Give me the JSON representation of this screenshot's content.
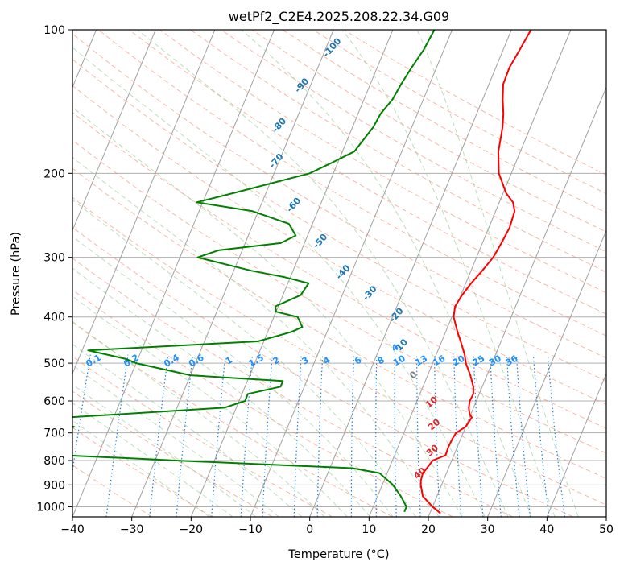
{
  "chart_data": {
    "type": "line",
    "title": "wetPf2_C2E4.2025.208.22.34.G09",
    "xlabel": "Temperature (°C)",
    "ylabel": "Pressure (hPa)",
    "xlim": [
      -40,
      50
    ],
    "ylim": [
      1050,
      100
    ],
    "yscale": "log",
    "x_ticks": [
      "−40",
      "−30",
      "−20",
      "−10",
      "0",
      "10",
      "20",
      "30",
      "40",
      "50"
    ],
    "y_ticks": [
      "100",
      "200",
      "300",
      "400",
      "500",
      "600",
      "700",
      "800",
      "900",
      "1000"
    ],
    "grid": true,
    "legend": "none",
    "series": [
      {
        "color": "#ff0000",
        "pressure": [
          1032,
          1000,
          950,
          900,
          880,
          850,
          840,
          800,
          780,
          750,
          720,
          700,
          680,
          650,
          640,
          620,
          600,
          580,
          560,
          530,
          500,
          480,
          450,
          430,
          400,
          380,
          360,
          340,
          320,
          300,
          280,
          260,
          240,
          230,
          220,
          200,
          180,
          160,
          150,
          140,
          130,
          120,
          110,
          100
        ],
        "temperature": [
          21.8,
          20.0,
          17.6,
          16.5,
          16.2,
          16.0,
          16.2,
          16.8,
          18.6,
          18.5,
          18.6,
          18.8,
          20.0,
          20.4,
          19.8,
          19.2,
          18.9,
          19.0,
          18.5,
          17.2,
          15.6,
          14.8,
          13.2,
          12.0,
          10.3,
          9.8,
          10.2,
          10.9,
          11.9,
          12.8,
          13.2,
          13.5,
          13.2,
          12.3,
          10.5,
          7.9,
          6.3,
          5.3,
          4.5,
          3.4,
          2.4,
          2.3,
          2.8,
          3.3
        ]
      },
      {
        "color": "#008000",
        "pressure": [
          1025,
          1000,
          950,
          900,
          850,
          830,
          800,
          790,
          780,
          760,
          745,
          730,
          720,
          700,
          680,
          660,
          650,
          620,
          600,
          580,
          560,
          545,
          530,
          500,
          490,
          470,
          450,
          430,
          420,
          400,
          390,
          380,
          360,
          340,
          330,
          320,
          300,
          290,
          280,
          270,
          255,
          240,
          230,
          220,
          200,
          190,
          180,
          160,
          150,
          140,
          130,
          120,
          110,
          100
        ],
        "temperature": [
          15.6,
          15.6,
          13.9,
          11.8,
          8.7,
          3.8,
          -26.5,
          -35.7,
          -46.0,
          -54.0,
          -58.0,
          -54.0,
          -56.0,
          -52.5,
          -46.0,
          -51.0,
          -48.0,
          -22.0,
          -19.0,
          -19.0,
          -14.0,
          -14.0,
          -30.0,
          -40.0,
          -42.0,
          -49.0,
          -21.0,
          -16.0,
          -14.5,
          -16.0,
          -20.0,
          -20.5,
          -17.0,
          -16.5,
          -21.0,
          -27.0,
          -37.0,
          -34.0,
          -24.0,
          -22.0,
          -24.0,
          -31.0,
          -41.0,
          -35.5,
          -24.0,
          -21.0,
          -18.0,
          -16.5,
          -16.2,
          -15.2,
          -14.8,
          -14.2,
          -13.4,
          -13.0
        ]
      }
    ],
    "mixing_ratio_labels": [
      "0.1",
      "0.2",
      "0.4",
      "0.6",
      "1",
      "1.5",
      "2",
      "3",
      "4",
      "6",
      "8",
      "10",
      "13",
      "16",
      "20",
      "25",
      "30",
      "36",
      "4",
      "10"
    ],
    "dry_adiabat_labels": [
      "-100",
      "-90",
      "-80",
      "-70",
      "-60",
      "-50",
      "-40",
      "-30",
      "-20"
    ],
    "moist_adiabat_labels": [
      "0",
      "10",
      "20",
      "30",
      "40"
    ],
    "colors": {
      "temperature_line": "#ff0000",
      "dewpoint_line": "#008000",
      "dry_adiabats": "#f08060",
      "moist_adiabats": "#90c890",
      "mixing_ratio": "#2080e0",
      "isotherms": "#a0a0a0",
      "dry_adiabat_labels": "#1f77b4",
      "mixing_ratio_labels": "#1e90ff",
      "moist_adiabat_labels": "#d62728",
      "zero_moist_label": "#808080"
    }
  }
}
